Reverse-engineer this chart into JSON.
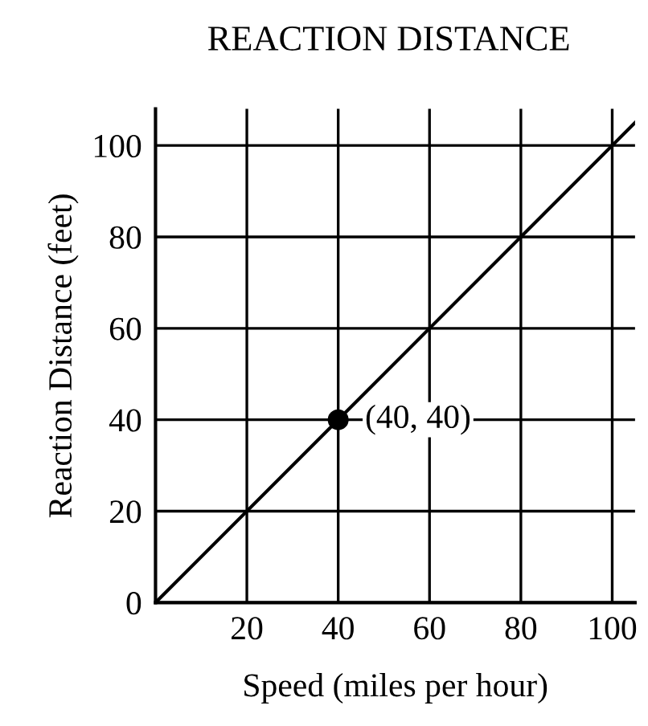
{
  "chart_data": {
    "type": "line",
    "title": "REACTION DISTANCE",
    "xlabel": "Speed (miles per hour)",
    "ylabel": "Reaction Distance (feet)",
    "x": [
      0,
      105
    ],
    "series": [
      {
        "color": "#000000",
        "values": [
          0,
          105
        ]
      },
      {
        "type": "scatter",
        "marker": "circle",
        "color": "#000000",
        "x": [
          40
        ],
        "values": [
          40
        ]
      }
    ],
    "xlim": [
      0,
      105
    ],
    "ylim": [
      0,
      108
    ],
    "xticks": [
      20,
      40,
      60,
      80,
      100
    ],
    "yticks": [
      0,
      20,
      40,
      60,
      80,
      100
    ],
    "grid": true,
    "line_style": "solid",
    "annotations": [
      {
        "text": "(40, 40)",
        "x": 40,
        "y": 40
      }
    ]
  }
}
